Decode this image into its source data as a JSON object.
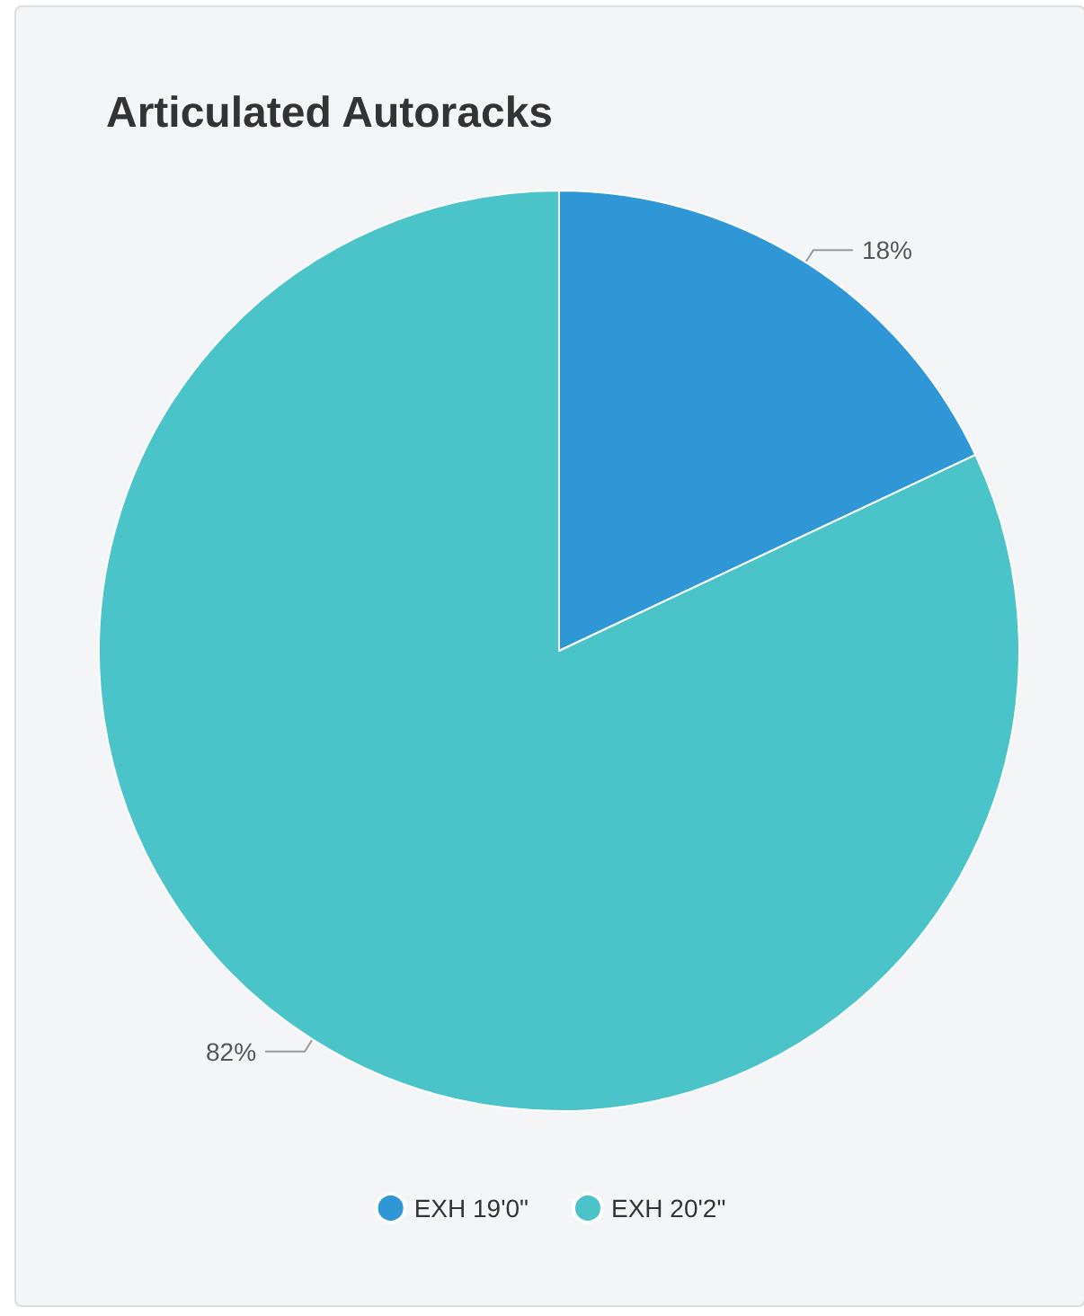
{
  "chart_data": {
    "type": "pie",
    "title": "Articulated Autoracks",
    "categories": [
      "EXH 19'0\"",
      "EXH 20'2\""
    ],
    "values": [
      18,
      82
    ],
    "colors": [
      "#3097d6",
      "#4bc4c9"
    ],
    "value_labels": [
      "18%",
      "82%"
    ],
    "legend": "bottom"
  }
}
